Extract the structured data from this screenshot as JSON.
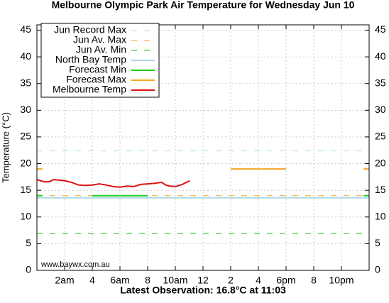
{
  "chart_data": {
    "type": "line",
    "title": "Melbourne Olympic Park Air Temperature  for Wednesday Jun 10",
    "x_label": "Latest Observation: 16.8°C at 11:03",
    "y_label": "Temperature (°C)",
    "watermark": "www.baywx.com.au",
    "xlim": [
      0,
      24
    ],
    "xticks": [
      {
        "value": 2,
        "label": "2am"
      },
      4,
      {
        "value": 6,
        "label": "6am"
      },
      8,
      {
        "value": 10,
        "label": "10am"
      },
      12,
      {
        "value": 14,
        "label": "2"
      },
      {
        "value": 16,
        "label": "4"
      },
      {
        "value": 18,
        "label": "6pm"
      },
      {
        "value": 20,
        "label": "8"
      },
      {
        "value": 22,
        "label": "10pm"
      }
    ],
    "ylim": [
      0,
      46
    ],
    "yticks": [
      0,
      5,
      10,
      15,
      20,
      25,
      30,
      35,
      40,
      45
    ],
    "grid": true,
    "legend": "top-left",
    "series": [
      {
        "name": "Jun Record Max",
        "color": "#bde3ea",
        "dashed": true,
        "x": [
          0,
          24
        ],
        "values": [
          22.4,
          22.4
        ]
      },
      {
        "name": "Jun Av. Max",
        "color": "#f5b342",
        "dashed": true,
        "x": [
          0,
          24
        ],
        "values": [
          14,
          14
        ]
      },
      {
        "name": "Jun Av. Min",
        "color": "#3ecf3e",
        "dashed": true,
        "x": [
          0,
          24
        ],
        "values": [
          6.9,
          6.9
        ]
      },
      {
        "name": "North Bay Temp",
        "color": "#add8e6",
        "dashed": false,
        "x": [
          0,
          24
        ],
        "values": [
          13.6,
          13.6
        ]
      },
      {
        "name": "Forecast Min",
        "color": "#22cc22",
        "dashed": false,
        "x": [
          0,
          0.4,
          2,
          4,
          8,
          10,
          23.6,
          24
        ],
        "values": [
          14,
          14,
          null,
          14,
          14,
          null,
          14,
          14
        ]
      },
      {
        "name": "Forecast Max",
        "color": "#f5a623",
        "dashed": false,
        "x": [
          0,
          0.4,
          2,
          14,
          18,
          20,
          23.6,
          24
        ],
        "values": [
          19,
          19,
          null,
          19,
          19,
          null,
          19,
          19
        ]
      },
      {
        "name": "Melbourne Temp",
        "color": "#dd1111",
        "dashed": false,
        "x": [
          0,
          0.5,
          0.9,
          1.2,
          2,
          2.5,
          3,
          3.5,
          4,
          4.5,
          5,
          5.5,
          6,
          6.5,
          7,
          7.5,
          8,
          8.5,
          9,
          9.3,
          9.6,
          10,
          10.5,
          11.05
        ],
        "values": [
          17.0,
          16.6,
          16.6,
          17.0,
          16.8,
          16.5,
          16.0,
          15.9,
          16.0,
          16.2,
          16.0,
          15.7,
          15.6,
          15.8,
          15.7,
          16.1,
          16.2,
          16.3,
          16.5,
          16.0,
          15.8,
          15.7,
          16.1,
          16.8
        ]
      }
    ]
  }
}
